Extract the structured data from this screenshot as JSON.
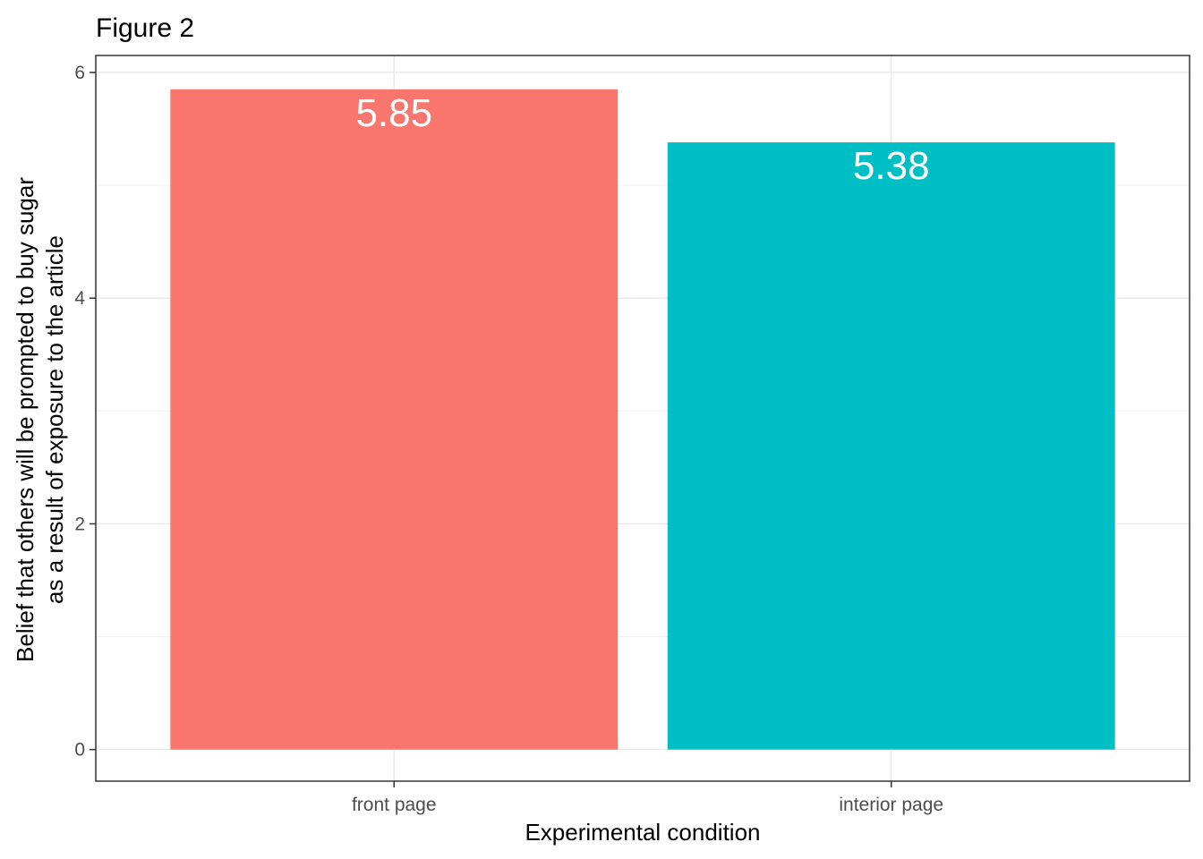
{
  "chart_data": {
    "type": "bar",
    "title": "Figure 2",
    "xlabel": "Experimental condition",
    "ylabel_lines": [
      "Belief that others will be prompted to buy sugar",
      "as a result of exposure to the article"
    ],
    "categories": [
      "front page",
      "interior page"
    ],
    "values": [
      5.85,
      5.38
    ],
    "value_labels": [
      "5.85",
      "5.38"
    ],
    "colors": [
      "#F8766D",
      "#00BFC4"
    ],
    "ylim": [
      -0.28,
      6.15
    ],
    "yticks": [
      0,
      2,
      4,
      6
    ],
    "yticks_minor": [
      1,
      3,
      5
    ],
    "grid": true,
    "legend": "none"
  }
}
